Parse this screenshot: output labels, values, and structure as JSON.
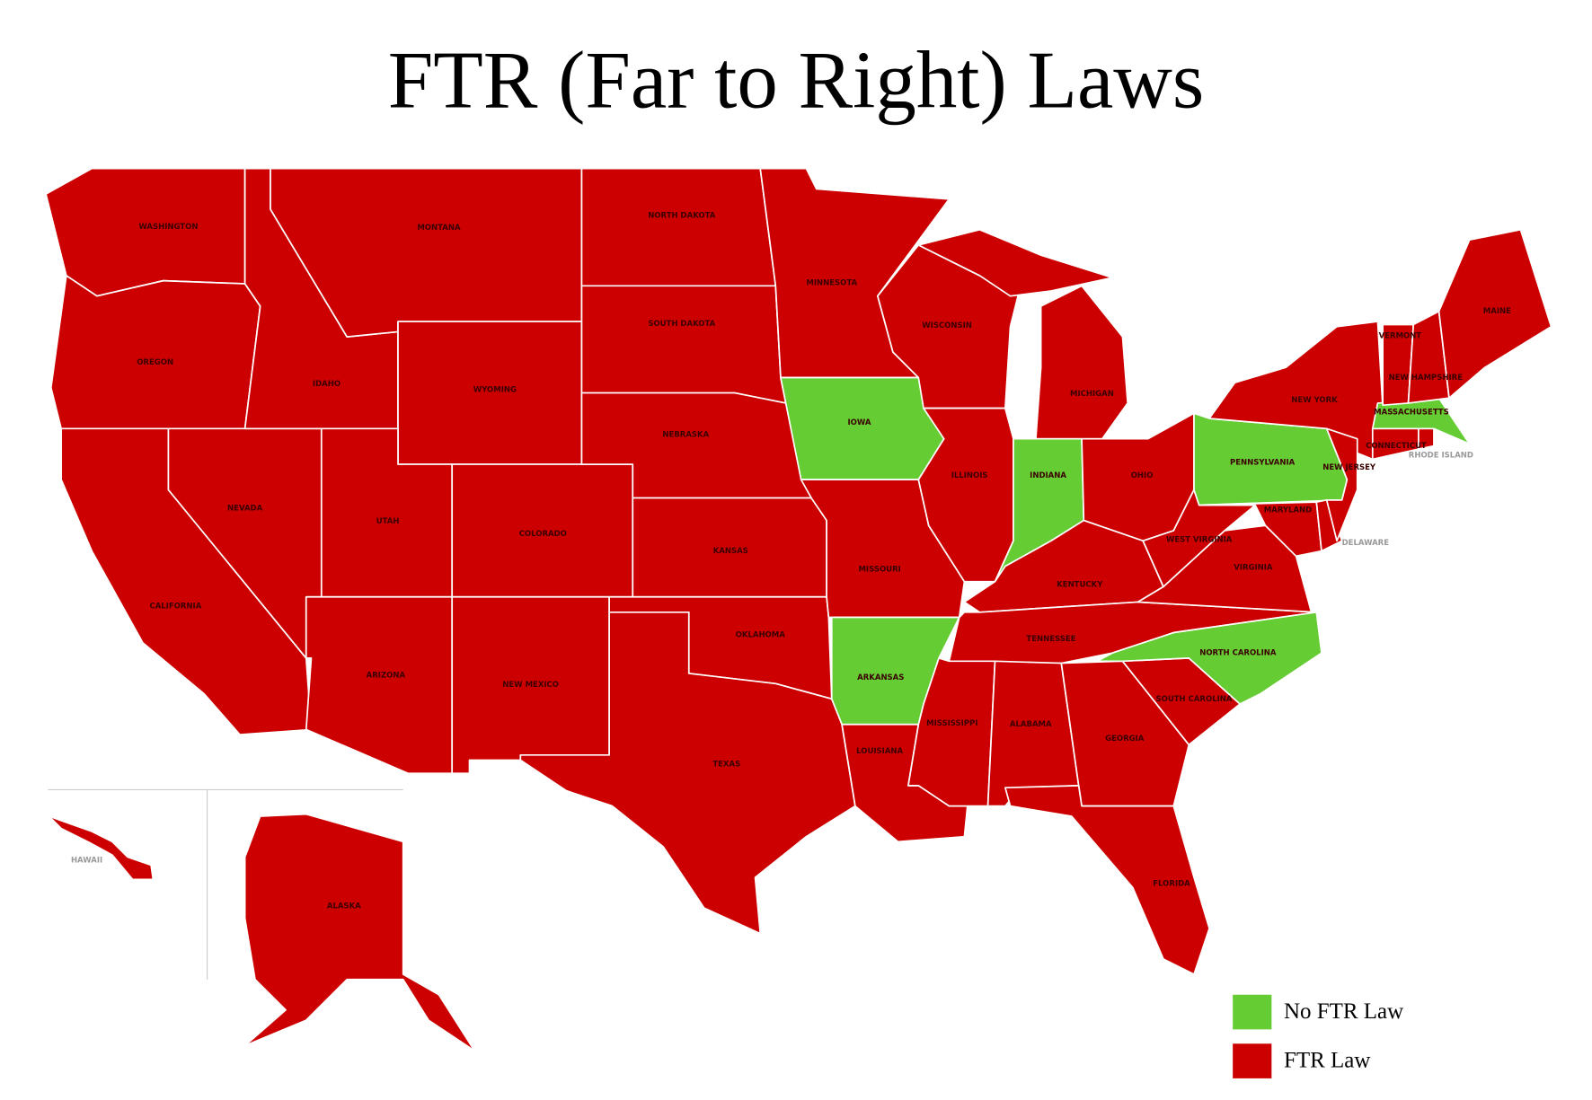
{
  "title": "FTR (Far to Right) Laws",
  "legend": [
    {
      "label": "No FTR Law",
      "color": "#66cc33"
    },
    {
      "label": "FTR Law",
      "color": "#cc0000"
    }
  ],
  "states": [
    {
      "name": "WASHINGTON",
      "status": "FTR Law"
    },
    {
      "name": "OREGON",
      "status": "FTR Law"
    },
    {
      "name": "CALIFORNIA",
      "status": "FTR Law"
    },
    {
      "name": "NEVADA",
      "status": "FTR Law"
    },
    {
      "name": "IDAHO",
      "status": "FTR Law"
    },
    {
      "name": "MONTANA",
      "status": "FTR Law"
    },
    {
      "name": "WYOMING",
      "status": "FTR Law"
    },
    {
      "name": "UTAH",
      "status": "FTR Law"
    },
    {
      "name": "ARIZONA",
      "status": "FTR Law"
    },
    {
      "name": "COLORADO",
      "status": "FTR Law"
    },
    {
      "name": "NEW MEXICO",
      "status": "FTR Law"
    },
    {
      "name": "NORTH DAKOTA",
      "status": "FTR Law"
    },
    {
      "name": "SOUTH DAKOTA",
      "status": "FTR Law"
    },
    {
      "name": "NEBRASKA",
      "status": "FTR Law"
    },
    {
      "name": "KANSAS",
      "status": "FTR Law"
    },
    {
      "name": "OKLAHOMA",
      "status": "FTR Law"
    },
    {
      "name": "TEXAS",
      "status": "FTR Law"
    },
    {
      "name": "MINNESOTA",
      "status": "FTR Law"
    },
    {
      "name": "IOWA",
      "status": "No FTR Law"
    },
    {
      "name": "MISSOURI",
      "status": "FTR Law"
    },
    {
      "name": "ARKANSAS",
      "status": "No FTR Law"
    },
    {
      "name": "LOUISIANA",
      "status": "FTR Law"
    },
    {
      "name": "WISCONSIN",
      "status": "FTR Law"
    },
    {
      "name": "ILLINOIS",
      "status": "FTR Law"
    },
    {
      "name": "MICHIGAN",
      "status": "FTR Law"
    },
    {
      "name": "INDIANA",
      "status": "No FTR Law"
    },
    {
      "name": "OHIO",
      "status": "FTR Law"
    },
    {
      "name": "KENTUCKY",
      "status": "FTR Law"
    },
    {
      "name": "TENNESSEE",
      "status": "FTR Law"
    },
    {
      "name": "MISSISSIPPI",
      "status": "FTR Law"
    },
    {
      "name": "ALABAMA",
      "status": "FTR Law"
    },
    {
      "name": "GEORGIA",
      "status": "FTR Law"
    },
    {
      "name": "FLORIDA",
      "status": "FTR Law"
    },
    {
      "name": "SOUTH CAROLINA",
      "status": "FTR Law"
    },
    {
      "name": "NORTH CAROLINA",
      "status": "No FTR Law"
    },
    {
      "name": "VIRGINIA",
      "status": "FTR Law"
    },
    {
      "name": "WEST VIRGINIA",
      "status": "FTR Law"
    },
    {
      "name": "PENNSYLVANIA",
      "status": "No FTR Law"
    },
    {
      "name": "NEW YORK",
      "status": "FTR Law"
    },
    {
      "name": "MARYLAND",
      "status": "FTR Law"
    },
    {
      "name": "DELAWARE",
      "status": "FTR Law"
    },
    {
      "name": "NEW JERSEY",
      "status": "FTR Law"
    },
    {
      "name": "CONNECTICUT",
      "status": "FTR Law"
    },
    {
      "name": "RHODE ISLAND",
      "status": "FTR Law"
    },
    {
      "name": "MASSACHUSETTS",
      "status": "No FTR Law"
    },
    {
      "name": "VERMONT",
      "status": "FTR Law"
    },
    {
      "name": "NEW HAMPSHIRE",
      "status": "FTR Law"
    },
    {
      "name": "MAINE",
      "status": "FTR Law"
    },
    {
      "name": "ALASKA",
      "status": "FTR Law"
    },
    {
      "name": "HAWAII",
      "status": "FTR Law"
    }
  ]
}
